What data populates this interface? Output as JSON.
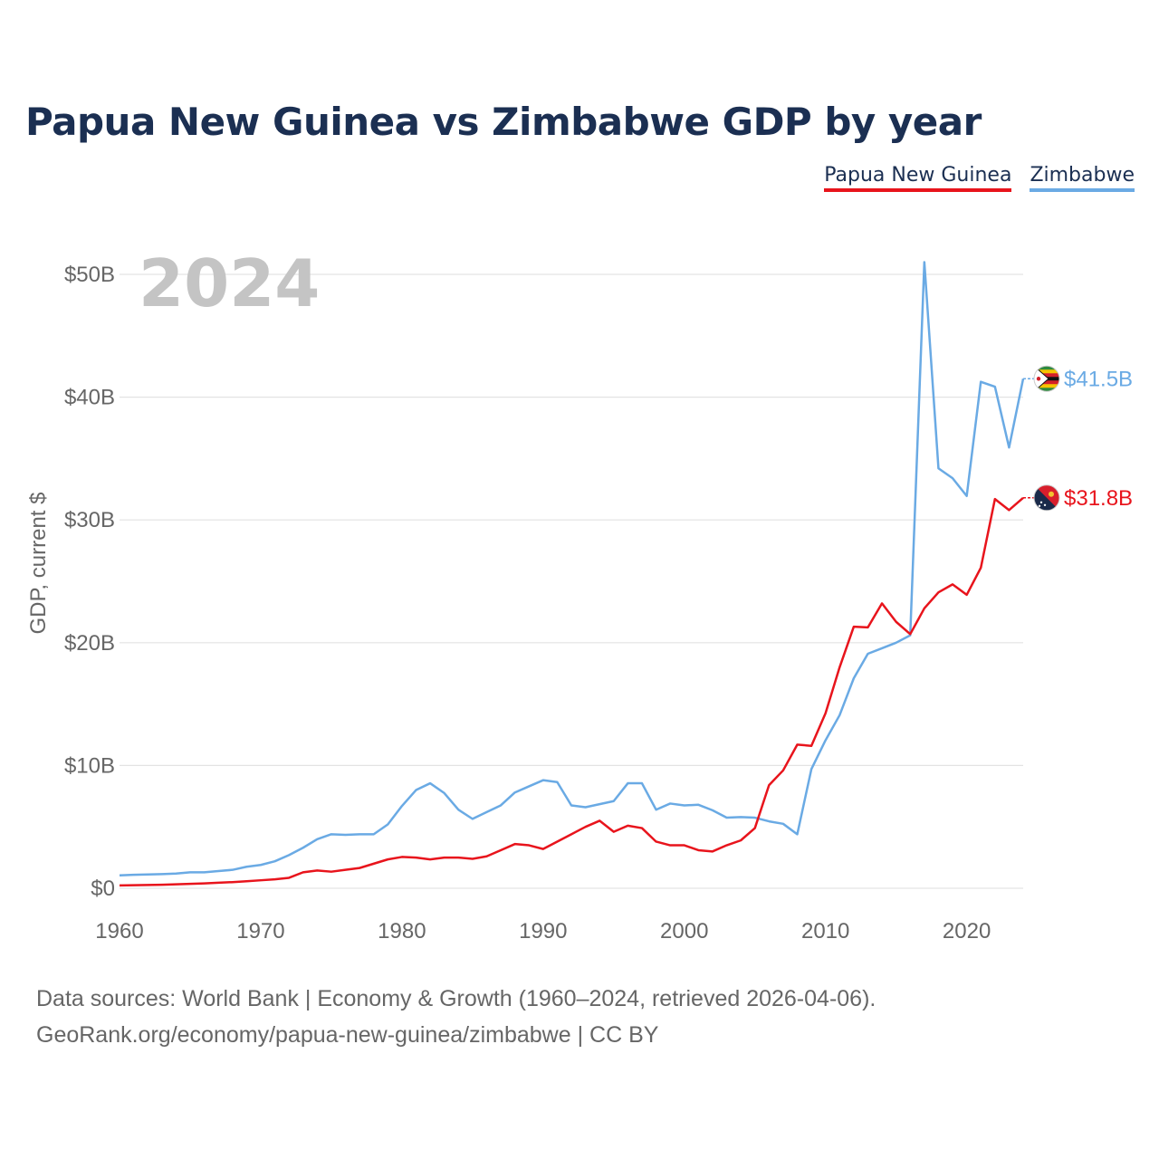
{
  "title": "Papua New Guinea vs Zimbabwe GDP by year",
  "legend": [
    {
      "name": "Papua New Guinea",
      "color": "#e8141c"
    },
    {
      "name": "Zimbabwe",
      "color": "#6aaae4"
    }
  ],
  "watermark_year": "2024",
  "source_lines": [
    "Data sources: World Bank | Economy & Growth (1960–2024, retrieved 2026-04-06).",
    "GeoRank.org/economy/papua-new-guinea/zimbabwe | CC BY"
  ],
  "chart_data": {
    "type": "line",
    "title": "Papua New Guinea vs Zimbabwe GDP by year",
    "xlabel": "",
    "ylabel": "GDP, current $",
    "xlim": [
      1960,
      2024
    ],
    "ylim": [
      0,
      50
    ],
    "y_unit": "billion USD",
    "x_ticks": [
      1960,
      1970,
      1980,
      1990,
      2000,
      2010,
      2020
    ],
    "x_tick_labels": [
      "1960",
      "1970",
      "1980",
      "1990",
      "2000",
      "2010",
      "2020"
    ],
    "y_ticks": [
      0,
      10,
      20,
      30,
      40,
      50
    ],
    "y_tick_labels": [
      "$0",
      "$10B",
      "$20B",
      "$30B",
      "$40B",
      "$50B"
    ],
    "grid": true,
    "legend_position": "top-right",
    "x": [
      1960,
      1961,
      1962,
      1963,
      1964,
      1965,
      1966,
      1967,
      1968,
      1969,
      1970,
      1971,
      1972,
      1973,
      1974,
      1975,
      1976,
      1977,
      1978,
      1979,
      1980,
      1981,
      1982,
      1983,
      1984,
      1985,
      1986,
      1987,
      1988,
      1989,
      1990,
      1991,
      1992,
      1993,
      1994,
      1995,
      1996,
      1997,
      1998,
      1999,
      2000,
      2001,
      2002,
      2003,
      2004,
      2005,
      2006,
      2007,
      2008,
      2009,
      2010,
      2011,
      2012,
      2013,
      2014,
      2015,
      2016,
      2017,
      2018,
      2019,
      2020,
      2021,
      2022,
      2023,
      2024
    ],
    "series": [
      {
        "name": "Papua New Guinea",
        "color": "#e8141c",
        "end_label": "$31.8B",
        "values": [
          0.23,
          0.25,
          0.27,
          0.29,
          0.32,
          0.36,
          0.4,
          0.45,
          0.5,
          0.57,
          0.65,
          0.73,
          0.85,
          1.3,
          1.45,
          1.35,
          1.5,
          1.65,
          2.0,
          2.35,
          2.55,
          2.5,
          2.35,
          2.5,
          2.5,
          2.4,
          2.6,
          3.1,
          3.6,
          3.5,
          3.2,
          3.8,
          4.4,
          5.0,
          5.5,
          4.6,
          5.1,
          4.9,
          3.8,
          3.5,
          3.5,
          3.1,
          3.0,
          3.5,
          3.9,
          4.9,
          8.4,
          9.6,
          11.7,
          11.6,
          14.25,
          18.0,
          21.3,
          21.25,
          23.2,
          21.7,
          20.7,
          22.8,
          24.1,
          24.75,
          23.9,
          26.1,
          31.7,
          30.8,
          31.8
        ]
      },
      {
        "name": "Zimbabwe",
        "color": "#6aaae4",
        "end_label": "$41.5B",
        "values": [
          1.05,
          1.1,
          1.12,
          1.15,
          1.2,
          1.3,
          1.3,
          1.4,
          1.5,
          1.75,
          1.9,
          2.2,
          2.7,
          3.3,
          4.0,
          4.4,
          4.35,
          4.4,
          4.4,
          5.2,
          6.7,
          8.0,
          8.55,
          7.75,
          6.4,
          5.65,
          6.2,
          6.75,
          7.8,
          8.3,
          8.8,
          8.65,
          6.75,
          6.6,
          6.85,
          7.1,
          8.55,
          8.55,
          6.4,
          6.9,
          6.75,
          6.8,
          6.35,
          5.75,
          5.8,
          5.75,
          5.45,
          5.25,
          4.4,
          9.7,
          12.05,
          14.1,
          17.1,
          19.1,
          19.55,
          20.0,
          20.6,
          51.0,
          34.2,
          33.4,
          31.95,
          41.25,
          40.85,
          35.9,
          41.5
        ]
      }
    ]
  }
}
